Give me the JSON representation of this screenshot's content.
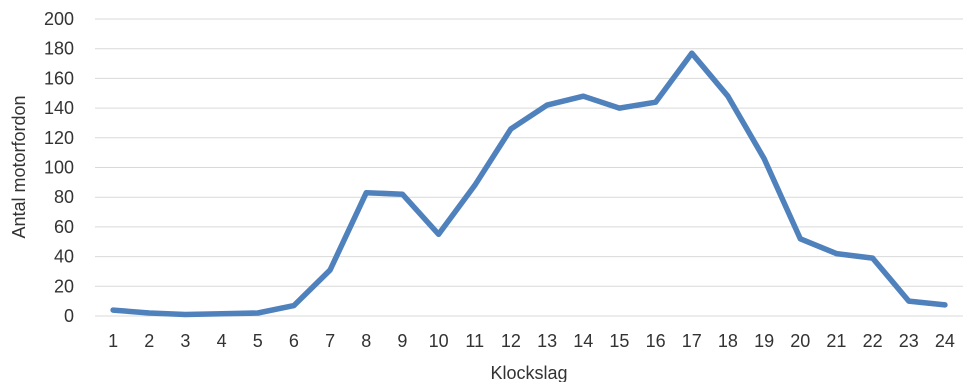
{
  "chart_data": {
    "type": "line",
    "title": "",
    "xlabel": "Klockslag",
    "ylabel": "Antal motorfordon",
    "x": [
      1,
      2,
      3,
      4,
      5,
      6,
      7,
      8,
      9,
      10,
      11,
      12,
      13,
      14,
      15,
      16,
      17,
      18,
      19,
      20,
      21,
      22,
      23,
      24
    ],
    "series": [
      {
        "values": [
          4,
          2,
          1,
          1.5,
          2,
          7,
          31,
          83,
          82,
          55,
          88,
          126,
          142,
          148,
          140,
          144,
          177,
          148,
          106,
          52,
          42,
          39,
          10,
          7.5
        ],
        "color": "#4f81bd"
      }
    ],
    "ylim": [
      0,
      200
    ],
    "yticks": [
      0,
      20,
      40,
      60,
      80,
      100,
      120,
      140,
      160,
      180,
      200
    ],
    "grid": true,
    "legend": "none"
  }
}
